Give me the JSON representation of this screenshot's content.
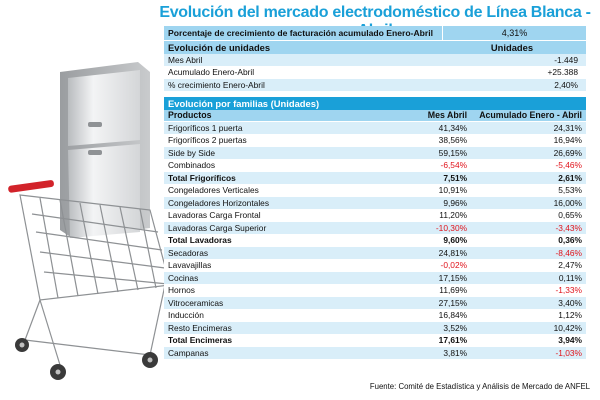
{
  "title": "Evolución del mercado electrodoméstico de Línea Blanca - Abril",
  "growth": {
    "label": "Porcentaje de crecimiento de facturación acumulado Enero-Abril",
    "value": "4,31%"
  },
  "units": {
    "header": "Evolución de unidades",
    "col_header": "Unidades",
    "rows": [
      {
        "label": "Mes Abril",
        "value": "-1.449"
      },
      {
        "label": "Acumulado Enero-Abril",
        "value": "+25.388"
      },
      {
        "label": "% crecimiento Enero-Abril",
        "value": "2,40%"
      }
    ]
  },
  "families": {
    "header": "Evolución por familias (Unidades)",
    "columns": [
      "Productos",
      "Mes Abril",
      "Acumulado Enero - Abril"
    ],
    "rows": [
      {
        "product": "Frigoríficos 1 puerta",
        "month": "41,34%",
        "accum": "24,31%"
      },
      {
        "product": "Frigoríficos 2 puertas",
        "month": "38,56%",
        "accum": "16,94%"
      },
      {
        "product": "Side by Side",
        "month": "59,15%",
        "accum": "26,69%"
      },
      {
        "product": "Combinados",
        "month": "-6,54%",
        "accum": "-5,46%"
      },
      {
        "product": "Total Frigoríficos",
        "month": "7,51%",
        "accum": "2,61%",
        "bold": true
      },
      {
        "product": "Congeladores Verticales",
        "month": "10,91%",
        "accum": "5,53%"
      },
      {
        "product": "Congeladores Horizontales",
        "month": "9,96%",
        "accum": "16,00%"
      },
      {
        "product": "Lavadoras Carga Frontal",
        "month": "11,20%",
        "accum": "0,65%"
      },
      {
        "product": "Lavadoras Carga Superior",
        "month": "-10,30%",
        "accum": "-3,43%"
      },
      {
        "product": "Total Lavadoras",
        "month": "9,60%",
        "accum": "0,36%",
        "bold": true
      },
      {
        "product": "Secadoras",
        "month": "24,81%",
        "accum": "-8,46%"
      },
      {
        "product": "Lavavajillas",
        "month": "-0,02%",
        "accum": "2,47%"
      },
      {
        "product": "Cocinas",
        "month": "17,15%",
        "accum": "0,11%"
      },
      {
        "product": "Hornos",
        "month": "11,69%",
        "accum": "-1,33%"
      },
      {
        "product": "Vitroceramicas",
        "month": "27,15%",
        "accum": "3,40%"
      },
      {
        "product": "Inducción",
        "month": "16,84%",
        "accum": "1,12%"
      },
      {
        "product": "Resto Encimeras",
        "month": "3,52%",
        "accum": "10,42%"
      },
      {
        "product": "Total Encimeras",
        "month": "17,61%",
        "accum": "3,94%",
        "bold": true
      },
      {
        "product": "Campanas",
        "month": "3,81%",
        "accum": "-1,03%"
      }
    ]
  },
  "source": "Fuente: Comité de Estadística y Análisis de Mercado de ANFEL",
  "colors": {
    "title": "#1aa0d8",
    "header_light": "#9fd5f0",
    "row_alt": "#d9eef9",
    "negative": "#e0131b"
  }
}
